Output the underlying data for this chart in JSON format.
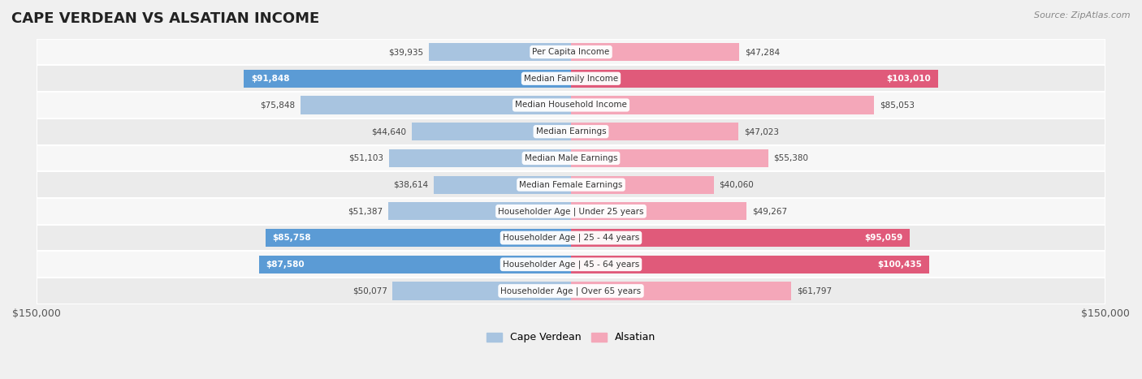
{
  "title": "CAPE VERDEAN VS ALSATIAN INCOME",
  "source": "Source: ZipAtlas.com",
  "categories": [
    "Per Capita Income",
    "Median Family Income",
    "Median Household Income",
    "Median Earnings",
    "Median Male Earnings",
    "Median Female Earnings",
    "Householder Age | Under 25 years",
    "Householder Age | 25 - 44 years",
    "Householder Age | 45 - 64 years",
    "Householder Age | Over 65 years"
  ],
  "cape_verdean": [
    39935,
    91848,
    75848,
    44640,
    51103,
    38614,
    51387,
    85758,
    87580,
    50077
  ],
  "alsatian": [
    47284,
    103010,
    85053,
    47023,
    55380,
    40060,
    49267,
    95059,
    100435,
    61797
  ],
  "max_val": 150000,
  "cape_verdean_color_light": "#a8c4e0",
  "cape_verdean_color_dark": "#5b9bd5",
  "alsatian_color_light": "#f4a7b9",
  "alsatian_color_dark": "#e05a7a",
  "bg_color": "#f0f0f0",
  "row_bg": "#f7f7f7",
  "row_bg_alt": "#ebebeb",
  "label_bg": "#ffffff",
  "cv_label_values_dark": [
    91848,
    85758,
    87580
  ],
  "als_label_values_dark": [
    103010,
    95059,
    100435
  ]
}
